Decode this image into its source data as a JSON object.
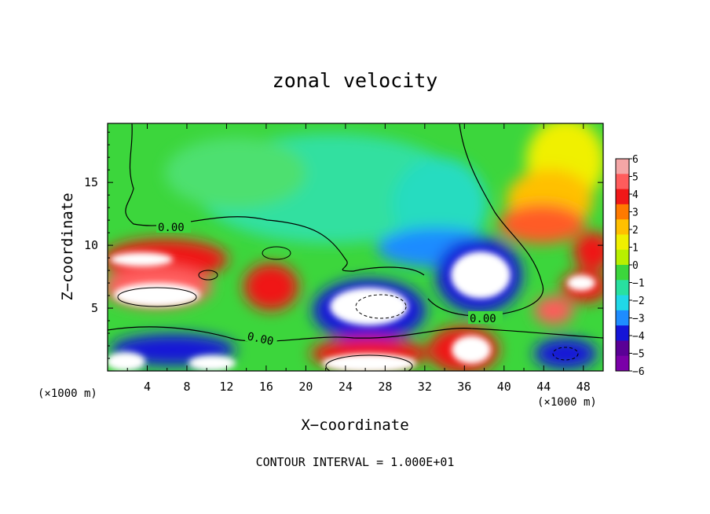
{
  "chart_data": {
    "type": "heatmap",
    "title": "zonal velocity",
    "xlabel": "X−coordinate",
    "ylabel": "Z−coordinate",
    "x_unit_left": "(×1000 m)",
    "x_unit_right": "(×1000 m)",
    "x_ticks": [
      4,
      8,
      12,
      16,
      20,
      24,
      28,
      32,
      36,
      40,
      44,
      48
    ],
    "y_ticks": [
      5,
      10,
      15
    ],
    "xlim": [
      0,
      50
    ],
    "ylim": [
      0,
      19.7
    ],
    "colorbar": {
      "ticks": [
        "6",
        "5",
        "4",
        "3",
        "2",
        "1",
        "0",
        "−1",
        "−2",
        "−3",
        "−4",
        "−5",
        "−6"
      ],
      "colors": [
        "#f4a6a6",
        "#ff5c5c",
        "#f01818",
        "#ff7a00",
        "#ffc000",
        "#f0f000",
        "#b8f000",
        "#3cd63c",
        "#28e0a0",
        "#20d8e8",
        "#1e8cff",
        "#1414d8",
        "#5a0096",
        "#7a00a8"
      ]
    },
    "contour_labels": [
      "0.00",
      "0.00",
      "0.00"
    ],
    "footer": "CONTOUR INTERVAL = 1.000E+01"
  },
  "colors": {
    "green": "#3cd63c",
    "aqua": "#30e0a0",
    "white": "#ffffff",
    "red": "#f01818",
    "pink": "#f4a6a6",
    "blue": "#1414d8",
    "lightblue": "#1e8cff",
    "yellow": "#f0f000",
    "orange": "#ff7a00",
    "purple": "#5a0096"
  }
}
